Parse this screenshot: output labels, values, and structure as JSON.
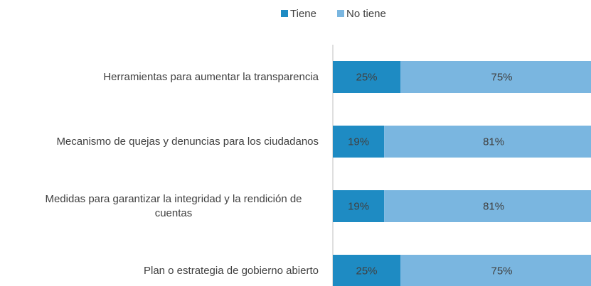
{
  "chart_data": {
    "type": "stacked_bar_horizontal",
    "categories": [
      "Herramientas para aumentar la transparencia",
      "Mecanismo de quejas y denuncias para los ciudadanos",
      "Medidas para garantizar la integridad y la rendición de cuentas",
      "Plan o estrategia de gobierno abierto"
    ],
    "series": [
      {
        "name": "Tiene",
        "color": "#1e8bc3",
        "values": [
          25,
          19,
          19,
          25
        ],
        "value_labels": [
          "25%",
          "19%",
          "19%",
          "25%"
        ]
      },
      {
        "name": "No tiene",
        "color": "#7ab6e0",
        "values": [
          75,
          81,
          81,
          75
        ],
        "value_labels": [
          "75%",
          "81%",
          "81%",
          "75%"
        ]
      }
    ],
    "xlim": [
      0,
      100
    ],
    "legend": "top"
  }
}
